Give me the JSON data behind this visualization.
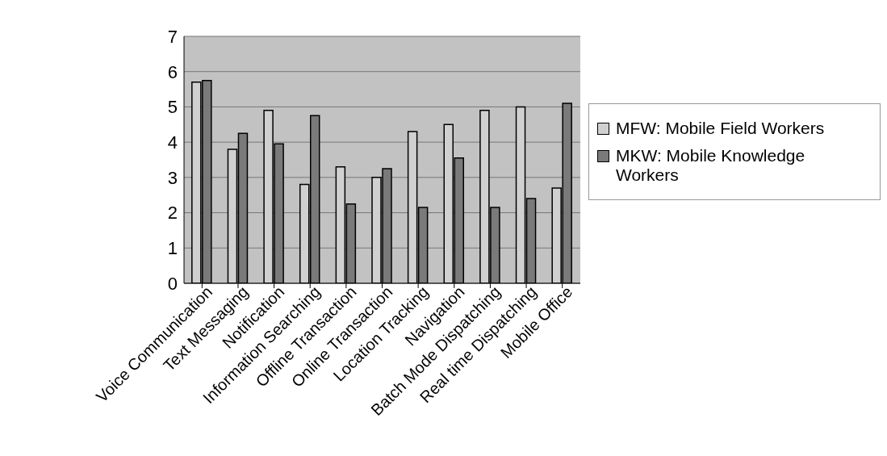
{
  "chart_data": {
    "type": "bar",
    "categories": [
      "Voice Communication",
      "Text Messaging",
      "Notification",
      "Information Searching",
      "Offline Transaction",
      "Online Transaction",
      "Location Tracking",
      "Navigation",
      "Batch Mode Dispatching",
      "Real time Dispatching",
      "Mobile Office"
    ],
    "series": [
      {
        "name": "MFW: Mobile Field Workers",
        "color": "#d0d0d0",
        "values": [
          5.7,
          3.8,
          4.9,
          2.8,
          3.3,
          3.0,
          4.3,
          4.5,
          4.9,
          5.0,
          2.7
        ]
      },
      {
        "name": "MKW: Mobile Knowledge Workers",
        "color": "#7a7a7a",
        "values": [
          5.75,
          4.25,
          3.95,
          4.75,
          2.25,
          3.25,
          2.15,
          3.55,
          2.15,
          2.4,
          5.1
        ]
      }
    ],
    "ylim": [
      0,
      7
    ],
    "yticks": [
      0,
      1,
      2,
      3,
      4,
      5,
      6,
      7
    ],
    "grid": "y",
    "legend": "right"
  }
}
